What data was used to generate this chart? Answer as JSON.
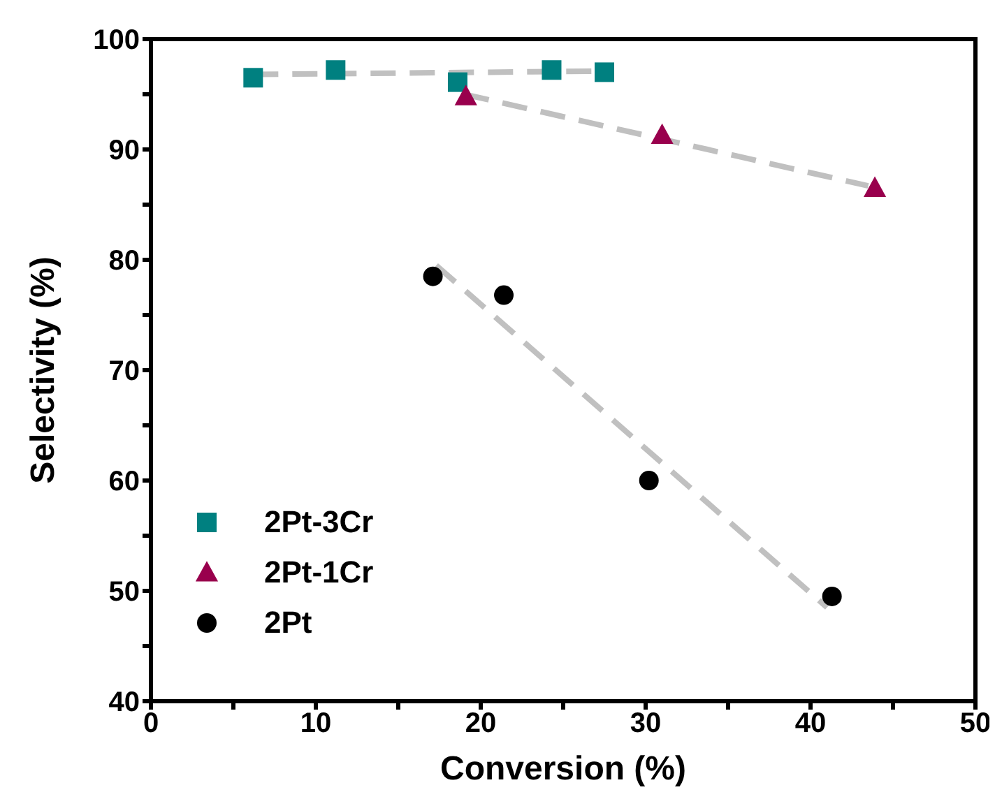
{
  "chart_data": {
    "type": "scatter",
    "xlabel": "Conversion (%)",
    "ylabel": "Selectivity (%)",
    "xlim": [
      0,
      50
    ],
    "ylim": [
      40,
      100
    ],
    "xticks": [
      0,
      {
        "value": 5,
        "label": null
      },
      10,
      {
        "value": 15,
        "label": null
      },
      20,
      {
        "value": 25,
        "label": null
      },
      30,
      {
        "value": 35,
        "label": null
      },
      40,
      {
        "value": 45,
        "label": null
      },
      50
    ],
    "yticks": [
      40,
      {
        "value": 45,
        "label": null
      },
      50,
      {
        "value": 55,
        "label": null
      },
      60,
      {
        "value": 65,
        "label": null
      },
      70,
      {
        "value": 75,
        "label": null
      },
      80,
      {
        "value": 85,
        "label": null
      },
      90,
      {
        "value": 95,
        "label": null
      },
      100
    ],
    "grid": false,
    "legend": "bottom left",
    "series": [
      {
        "name": "2Pt-3Cr",
        "color": "#008080",
        "marker": "square",
        "x": [
          6.2,
          11.2,
          18.6,
          24.3,
          27.5
        ],
        "values": [
          96.5,
          97.2,
          96.1,
          97.2,
          97.0
        ]
      },
      {
        "name": "2Pt-1Cr",
        "color": "#99004d",
        "marker": "triangle",
        "x": [
          19.1,
          31.0,
          43.9
        ],
        "values": [
          94.8,
          91.3,
          86.5
        ]
      },
      {
        "name": "2Pt",
        "color": "#000000",
        "marker": "circle",
        "x": [
          17.1,
          21.4,
          30.2,
          41.3
        ],
        "values": [
          78.5,
          76.8,
          60.0,
          49.5
        ]
      },
      {
        "type": "line",
        "color": "#c0c0c0",
        "line_style": "dashed",
        "marker": "none",
        "x": [
          6.2,
          27.5
        ],
        "values": [
          96.8,
          97.1
        ]
      },
      {
        "type": "line",
        "color": "#c0c0c0",
        "line_style": "dashed",
        "marker": "none",
        "x": [
          19.0,
          43.5
        ],
        "values": [
          95.0,
          86.7
        ]
      },
      {
        "type": "line",
        "color": "#c0c0c0",
        "line_style": "dashed",
        "marker": "none",
        "x": [
          17.3,
          41.0
        ],
        "values": [
          79.5,
          48.5
        ]
      }
    ]
  }
}
